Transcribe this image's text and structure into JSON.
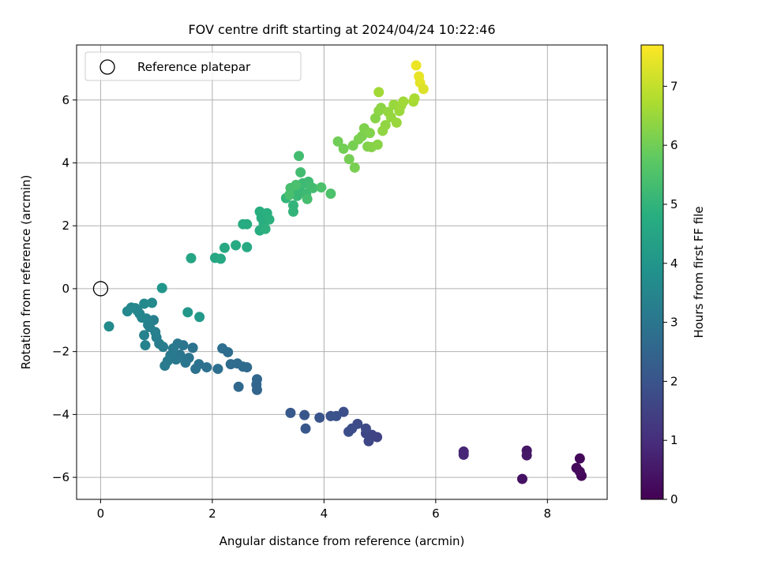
{
  "chart_data": {
    "type": "scatter",
    "title": "FOV centre drift starting at 2024/04/24 10:22:46",
    "xlabel": "Angular distance from reference (arcmin)",
    "ylabel": "Rotation from reference (arcmin)",
    "xlim": [
      -0.43,
      9.07
    ],
    "ylim": [
      -6.7,
      7.75
    ],
    "xticks": [
      0,
      2,
      4,
      6,
      8
    ],
    "yticks": [
      -6,
      -4,
      -2,
      0,
      2,
      4,
      6
    ],
    "grid": true,
    "legend": {
      "placement": "top-left",
      "entries": [
        "Reference platepar"
      ]
    },
    "reference_point": {
      "x": 0,
      "y": 0
    },
    "colorbar": {
      "label": "Hours from first FF file",
      "colormap": "viridis",
      "range": [
        0,
        7.7
      ],
      "ticks": [
        0,
        1,
        2,
        3,
        4,
        5,
        6,
        7
      ]
    },
    "series": [
      {
        "points": [
          {
            "x": 8.61,
            "y": -5.95,
            "h": 0.12
          },
          {
            "x": 8.58,
            "y": -5.4,
            "h": 0.15
          },
          {
            "x": 8.52,
            "y": -5.7,
            "h": 0.18
          },
          {
            "x": 8.58,
            "y": -5.82,
            "h": 0.2
          },
          {
            "x": 7.55,
            "y": -6.05,
            "h": 0.35
          },
          {
            "x": 7.63,
            "y": -5.15,
            "h": 0.45
          },
          {
            "x": 7.63,
            "y": -5.3,
            "h": 0.5
          },
          {
            "x": 6.5,
            "y": -5.18,
            "h": 0.8
          },
          {
            "x": 6.5,
            "y": -5.28,
            "h": 0.85
          },
          {
            "x": 4.95,
            "y": -4.72,
            "h": 1.5
          },
          {
            "x": 4.86,
            "y": -4.65,
            "h": 1.55
          },
          {
            "x": 4.8,
            "y": -4.85,
            "h": 1.6
          },
          {
            "x": 4.75,
            "y": -4.6,
            "h": 1.65
          },
          {
            "x": 4.75,
            "y": -4.45,
            "h": 1.7
          },
          {
            "x": 4.6,
            "y": -4.3,
            "h": 1.75
          },
          {
            "x": 4.5,
            "y": -4.45,
            "h": 1.8
          },
          {
            "x": 4.44,
            "y": -4.55,
            "h": 1.82
          },
          {
            "x": 4.35,
            "y": -3.92,
            "h": 1.85
          },
          {
            "x": 4.22,
            "y": -4.05,
            "h": 1.9
          },
          {
            "x": 4.12,
            "y": -4.05,
            "h": 1.95
          },
          {
            "x": 3.92,
            "y": -4.1,
            "h": 2.0
          },
          {
            "x": 3.65,
            "y": -4.02,
            "h": 2.05
          },
          {
            "x": 3.67,
            "y": -4.45,
            "h": 2.1
          },
          {
            "x": 3.4,
            "y": -3.95,
            "h": 2.15
          },
          {
            "x": 2.8,
            "y": -3.22,
            "h": 2.5
          },
          {
            "x": 2.79,
            "y": -3.05,
            "h": 2.52
          },
          {
            "x": 2.8,
            "y": -2.88,
            "h": 2.55
          },
          {
            "x": 2.47,
            "y": -3.12,
            "h": 2.6
          },
          {
            "x": 2.62,
            "y": -2.5,
            "h": 2.65
          },
          {
            "x": 2.55,
            "y": -2.48,
            "h": 2.68
          },
          {
            "x": 2.45,
            "y": -2.38,
            "h": 2.7
          },
          {
            "x": 2.33,
            "y": -2.4,
            "h": 2.72
          },
          {
            "x": 2.28,
            "y": -2.02,
            "h": 2.75
          },
          {
            "x": 2.18,
            "y": -1.9,
            "h": 2.78
          },
          {
            "x": 2.1,
            "y": -2.55,
            "h": 2.8
          },
          {
            "x": 1.9,
            "y": -2.5,
            "h": 2.85
          },
          {
            "x": 1.76,
            "y": -2.4,
            "h": 2.88
          },
          {
            "x": 1.7,
            "y": -2.55,
            "h": 2.9
          },
          {
            "x": 1.65,
            "y": -1.88,
            "h": 2.92
          },
          {
            "x": 1.58,
            "y": -2.2,
            "h": 2.95
          },
          {
            "x": 1.52,
            "y": -2.35,
            "h": 2.98
          },
          {
            "x": 1.48,
            "y": -1.8,
            "h": 3.0
          },
          {
            "x": 1.42,
            "y": -2.1,
            "h": 3.02
          },
          {
            "x": 1.38,
            "y": -1.75,
            "h": 3.05
          },
          {
            "x": 1.35,
            "y": -2.25,
            "h": 3.08
          },
          {
            "x": 1.3,
            "y": -1.9,
            "h": 3.1
          },
          {
            "x": 1.25,
            "y": -2.12,
            "h": 3.12
          },
          {
            "x": 1.2,
            "y": -2.3,
            "h": 3.15
          },
          {
            "x": 1.15,
            "y": -2.45,
            "h": 3.18
          },
          {
            "x": 1.12,
            "y": -1.85,
            "h": 3.2
          },
          {
            "x": 1.05,
            "y": -1.75,
            "h": 3.22
          },
          {
            "x": 1.0,
            "y": -1.55,
            "h": 3.25
          },
          {
            "x": 0.98,
            "y": -1.38,
            "h": 3.28
          },
          {
            "x": 0.95,
            "y": -1.0,
            "h": 3.3
          },
          {
            "x": 0.88,
            "y": -1.22,
            "h": 3.32
          },
          {
            "x": 0.85,
            "y": -1.15,
            "h": 3.35
          },
          {
            "x": 0.82,
            "y": -0.95,
            "h": 3.38
          },
          {
            "x": 0.8,
            "y": -1.8,
            "h": 3.4
          },
          {
            "x": 0.78,
            "y": -1.48,
            "h": 3.42
          },
          {
            "x": 0.74,
            "y": -0.92,
            "h": 3.45
          },
          {
            "x": 0.7,
            "y": -0.8,
            "h": 3.48
          },
          {
            "x": 0.66,
            "y": -0.7,
            "h": 3.5
          },
          {
            "x": 0.62,
            "y": -0.62,
            "h": 3.52
          },
          {
            "x": 0.55,
            "y": -0.6,
            "h": 3.55
          },
          {
            "x": 0.48,
            "y": -0.72,
            "h": 3.58
          },
          {
            "x": 0.78,
            "y": -0.48,
            "h": 3.6
          },
          {
            "x": 0.92,
            "y": -0.45,
            "h": 3.62
          },
          {
            "x": 0.15,
            "y": -1.2,
            "h": 3.65
          },
          {
            "x": 1.1,
            "y": 0.02,
            "h": 4.0
          },
          {
            "x": 1.56,
            "y": -0.75,
            "h": 4.05
          },
          {
            "x": 1.77,
            "y": -0.9,
            "h": 4.1
          },
          {
            "x": 1.62,
            "y": 0.97,
            "h": 4.5
          },
          {
            "x": 2.05,
            "y": 0.98,
            "h": 4.55
          },
          {
            "x": 2.15,
            "y": 0.95,
            "h": 4.6
          },
          {
            "x": 2.22,
            "y": 1.3,
            "h": 4.62
          },
          {
            "x": 2.42,
            "y": 1.38,
            "h": 4.65
          },
          {
            "x": 2.62,
            "y": 1.32,
            "h": 4.68
          },
          {
            "x": 2.55,
            "y": 2.05,
            "h": 4.7
          },
          {
            "x": 2.62,
            "y": 2.05,
            "h": 4.72
          },
          {
            "x": 2.85,
            "y": 1.85,
            "h": 4.75
          },
          {
            "x": 2.88,
            "y": 2.25,
            "h": 4.78
          },
          {
            "x": 2.92,
            "y": 2.05,
            "h": 4.8
          },
          {
            "x": 2.85,
            "y": 2.45,
            "h": 4.82
          },
          {
            "x": 2.98,
            "y": 2.4,
            "h": 4.85
          },
          {
            "x": 3.02,
            "y": 2.2,
            "h": 4.88
          },
          {
            "x": 2.95,
            "y": 1.9,
            "h": 4.9
          },
          {
            "x": 3.45,
            "y": 2.45,
            "h": 5.0
          },
          {
            "x": 3.45,
            "y": 2.65,
            "h": 5.02
          },
          {
            "x": 3.32,
            "y": 2.88,
            "h": 5.05
          },
          {
            "x": 3.42,
            "y": 3.05,
            "h": 5.08
          },
          {
            "x": 3.48,
            "y": 3.2,
            "h": 5.1
          },
          {
            "x": 3.52,
            "y": 2.95,
            "h": 5.12
          },
          {
            "x": 3.58,
            "y": 3.1,
            "h": 5.15
          },
          {
            "x": 3.62,
            "y": 3.35,
            "h": 5.18
          },
          {
            "x": 3.68,
            "y": 3.0,
            "h": 5.2
          },
          {
            "x": 3.72,
            "y": 3.4,
            "h": 5.22
          },
          {
            "x": 3.75,
            "y": 3.25,
            "h": 5.25
          },
          {
            "x": 3.8,
            "y": 3.2,
            "h": 5.28
          },
          {
            "x": 3.58,
            "y": 3.7,
            "h": 5.3
          },
          {
            "x": 3.55,
            "y": 4.22,
            "h": 5.32
          },
          {
            "x": 3.7,
            "y": 2.85,
            "h": 5.35
          },
          {
            "x": 3.4,
            "y": 3.2,
            "h": 5.38
          },
          {
            "x": 3.38,
            "y": 2.98,
            "h": 5.4
          },
          {
            "x": 3.5,
            "y": 3.3,
            "h": 5.42
          },
          {
            "x": 3.95,
            "y": 3.22,
            "h": 5.45
          },
          {
            "x": 4.12,
            "y": 3.02,
            "h": 5.48
          },
          {
            "x": 4.25,
            "y": 4.68,
            "h": 6.0
          },
          {
            "x": 4.35,
            "y": 4.45,
            "h": 6.02
          },
          {
            "x": 4.45,
            "y": 4.12,
            "h": 6.05
          },
          {
            "x": 4.52,
            "y": 4.55,
            "h": 6.08
          },
          {
            "x": 4.55,
            "y": 3.85,
            "h": 6.1
          },
          {
            "x": 4.62,
            "y": 4.75,
            "h": 6.12
          },
          {
            "x": 4.68,
            "y": 4.85,
            "h": 6.15
          },
          {
            "x": 4.72,
            "y": 5.1,
            "h": 6.18
          },
          {
            "x": 4.78,
            "y": 4.52,
            "h": 6.2
          },
          {
            "x": 4.82,
            "y": 4.95,
            "h": 6.22
          },
          {
            "x": 4.85,
            "y": 4.5,
            "h": 6.25
          },
          {
            "x": 4.92,
            "y": 5.42,
            "h": 6.28
          },
          {
            "x": 4.96,
            "y": 4.58,
            "h": 6.3
          },
          {
            "x": 4.98,
            "y": 5.65,
            "h": 6.32
          },
          {
            "x": 5.02,
            "y": 5.75,
            "h": 6.35
          },
          {
            "x": 5.05,
            "y": 5.02,
            "h": 6.38
          },
          {
            "x": 5.1,
            "y": 5.2,
            "h": 6.4
          },
          {
            "x": 5.15,
            "y": 5.62,
            "h": 6.42
          },
          {
            "x": 5.2,
            "y": 5.45,
            "h": 6.45
          },
          {
            "x": 5.25,
            "y": 5.85,
            "h": 6.48
          },
          {
            "x": 5.3,
            "y": 5.28,
            "h": 6.5
          },
          {
            "x": 5.35,
            "y": 5.65,
            "h": 6.52
          },
          {
            "x": 5.38,
            "y": 5.82,
            "h": 6.55
          },
          {
            "x": 5.42,
            "y": 5.95,
            "h": 6.58
          },
          {
            "x": 4.98,
            "y": 6.25,
            "h": 6.6
          },
          {
            "x": 5.6,
            "y": 5.95,
            "h": 6.65
          },
          {
            "x": 5.62,
            "y": 6.05,
            "h": 6.7
          },
          {
            "x": 5.65,
            "y": 7.1,
            "h": 7.5
          },
          {
            "x": 5.7,
            "y": 6.75,
            "h": 7.45
          },
          {
            "x": 5.72,
            "y": 6.55,
            "h": 7.4
          },
          {
            "x": 5.78,
            "y": 6.35,
            "h": 7.3
          }
        ]
      }
    ]
  }
}
